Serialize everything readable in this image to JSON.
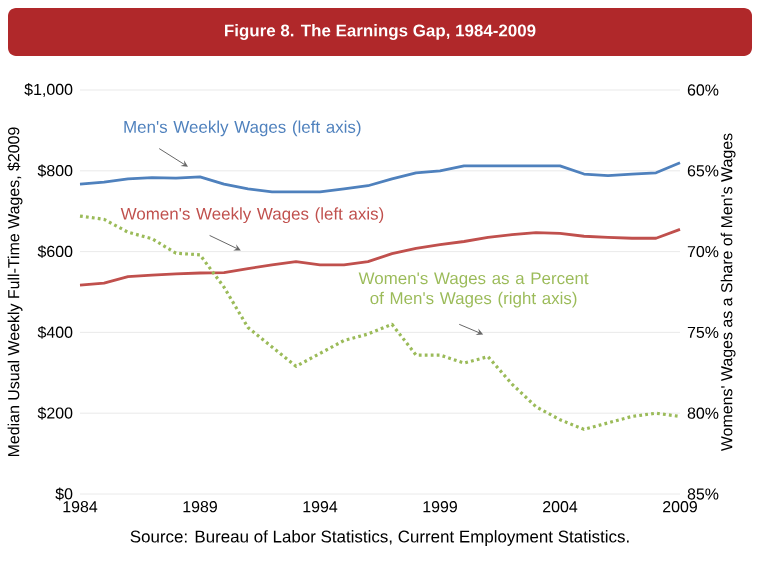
{
  "chart_data": {
    "type": "line",
    "title": "Figure 8. The Earnings Gap, 1984-2009",
    "ylabel": "Median Usual Weekly Full-Time Wages, $2009",
    "y2label": "Womens' Wages as a Share of Men's Wages",
    "x": [
      1984,
      1985,
      1986,
      1987,
      1988,
      1989,
      1990,
      1991,
      1992,
      1993,
      1994,
      1995,
      1996,
      1997,
      1998,
      1999,
      2000,
      2001,
      2002,
      2003,
      2004,
      2005,
      2006,
      2007,
      2008,
      2009
    ],
    "series": [
      {
        "name": "Men's Weekly Wages (left axis)",
        "color": "#4f81bd",
        "values": [
          767,
          772,
          780,
          783,
          782,
          785,
          767,
          755,
          748,
          748,
          748,
          755,
          763,
          780,
          795,
          800,
          812,
          812,
          812,
          812,
          812,
          792,
          788,
          792,
          795,
          820
        ]
      },
      {
        "name": "Women's Weekly Wages (left axis)",
        "color": "#c0504d",
        "values": [
          517,
          522,
          538,
          542,
          545,
          547,
          548,
          558,
          567,
          575,
          567,
          567,
          575,
          595,
          608,
          617,
          625,
          635,
          642,
          647,
          645,
          638,
          635,
          633,
          633,
          655
        ]
      },
      {
        "name": "Women's Wages as a Percent of Men's Wages (right axis)",
        "color": "#9bbb59",
        "axis": "y2",
        "line_style": "dotted",
        "values": [
          67.8,
          68.0,
          68.8,
          69.2,
          70.1,
          70.2,
          72.2,
          74.7,
          75.9,
          77.1,
          76.3,
          75.5,
          75.1,
          74.5,
          76.4,
          76.4,
          76.9,
          76.5,
          78.2,
          79.6,
          80.4,
          81.0,
          80.6,
          80.2,
          80.0,
          80.2
        ]
      }
    ],
    "xlim": [
      1984,
      2009
    ],
    "xticks": [
      1984,
      1989,
      1994,
      1999,
      2004,
      2009
    ],
    "ylim": [
      0,
      1000
    ],
    "yticks": [
      {
        "value": 0,
        "label": "$0"
      },
      {
        "value": 200,
        "label": "$200"
      },
      {
        "value": 400,
        "label": "$400"
      },
      {
        "value": 600,
        "label": "$600"
      },
      {
        "value": 800,
        "label": "$800"
      },
      {
        "value": 1000,
        "label": "$1,000"
      }
    ],
    "y2lim": [
      85,
      60
    ],
    "y2ticks": [
      {
        "value": 60,
        "label": "60%"
      },
      {
        "value": 65,
        "label": "65%"
      },
      {
        "value": 70,
        "label": "70%"
      },
      {
        "value": 75,
        "label": "75%"
      },
      {
        "value": 80,
        "label": "80%"
      },
      {
        "value": 85,
        "label": "85%"
      }
    ],
    "grid": "y",
    "legend": false,
    "annotations": [
      "Source: Bureau of Labor Statistics, Current Employment Statistics."
    ]
  }
}
